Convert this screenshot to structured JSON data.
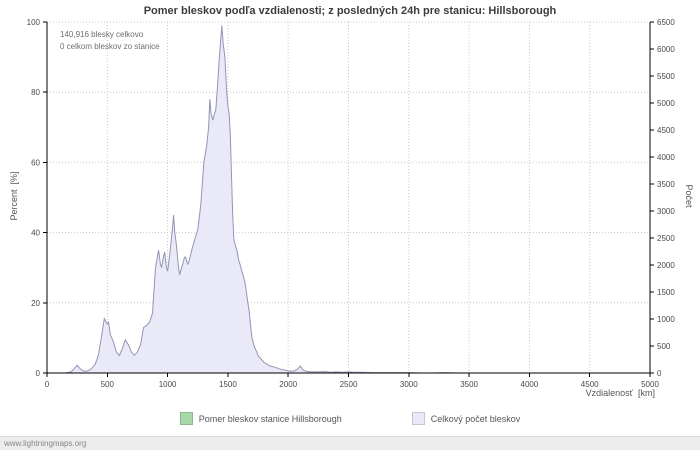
{
  "title": "Pomer bleskov podľa vzdialenosti; z posledných 24h pre stanicu: Hillsborough",
  "annotation": {
    "line1": "140,916 blesky celkovo",
    "line2": "0 celkom bleskov zo stanice"
  },
  "footer": "www.lightningmaps.org",
  "colors": {
    "area_fill": "#e9e9f8",
    "area_stroke": "#9494b4",
    "station": "#a8d8a8",
    "grid": "#c8c8c8",
    "axis": "#000000"
  },
  "legend": [
    {
      "label": "Pomer bleskov stanice Hillsborough",
      "color": "#a8d8a8"
    },
    {
      "label": "Celkový počet bleskov",
      "color": "#e9e9f8"
    }
  ],
  "chart_data": {
    "type": "area",
    "title": "Pomer bleskov podľa vzdialenosti; z posledných 24h pre stanicu: Hillsborough",
    "x_axis": {
      "label": "Vzdialenosť  [km]",
      "min": 0,
      "max": 5000,
      "tick_step": 500
    },
    "left_axis": {
      "label": "Percent  [%]",
      "min": 0,
      "max": 100,
      "ticks": [
        0,
        20,
        40,
        60,
        80,
        100
      ]
    },
    "right_axis": {
      "label": "Počet",
      "min": 0,
      "max": 6500,
      "tick_step": 500
    },
    "grid": true,
    "legend_position": "bottom",
    "series": [
      {
        "name": "Pomer bleskov stanice Hillsborough",
        "axis": "left",
        "points": [
          [
            0,
            0
          ],
          [
            5000,
            0
          ]
        ]
      },
      {
        "name": "Celkový počet bleskov",
        "axis": "right",
        "unit_note": "percent of peak; right axis count = percent * 65",
        "points": [
          [
            0,
            0
          ],
          [
            50,
            0
          ],
          [
            100,
            0
          ],
          [
            150,
            0
          ],
          [
            200,
            0.3
          ],
          [
            225,
            1.2
          ],
          [
            250,
            2.2
          ],
          [
            275,
            1.2
          ],
          [
            300,
            0.6
          ],
          [
            325,
            0.5
          ],
          [
            350,
            0.8
          ],
          [
            375,
            1.5
          ],
          [
            400,
            2.5
          ],
          [
            425,
            5
          ],
          [
            450,
            10
          ],
          [
            475,
            15.5
          ],
          [
            500,
            14
          ],
          [
            510,
            14.5
          ],
          [
            525,
            11
          ],
          [
            550,
            9
          ],
          [
            575,
            6
          ],
          [
            600,
            5
          ],
          [
            625,
            7
          ],
          [
            650,
            9.5
          ],
          [
            675,
            8
          ],
          [
            700,
            6
          ],
          [
            725,
            5
          ],
          [
            750,
            6
          ],
          [
            775,
            8
          ],
          [
            800,
            13
          ],
          [
            825,
            13.5
          ],
          [
            850,
            14.5
          ],
          [
            875,
            17
          ],
          [
            900,
            30
          ],
          [
            915,
            33
          ],
          [
            925,
            35
          ],
          [
            940,
            31
          ],
          [
            950,
            30
          ],
          [
            965,
            33
          ],
          [
            975,
            34.5
          ],
          [
            990,
            30
          ],
          [
            1000,
            29
          ],
          [
            1015,
            33
          ],
          [
            1025,
            36
          ],
          [
            1040,
            41
          ],
          [
            1050,
            45
          ],
          [
            1060,
            40
          ],
          [
            1075,
            36
          ],
          [
            1090,
            30
          ],
          [
            1100,
            28
          ],
          [
            1115,
            30
          ],
          [
            1125,
            31
          ],
          [
            1140,
            33
          ],
          [
            1150,
            33
          ],
          [
            1165,
            31
          ],
          [
            1175,
            31.5
          ],
          [
            1200,
            35
          ],
          [
            1225,
            38
          ],
          [
            1250,
            41
          ],
          [
            1265,
            45
          ],
          [
            1275,
            48
          ],
          [
            1290,
            55
          ],
          [
            1300,
            60
          ],
          [
            1315,
            63
          ],
          [
            1325,
            65
          ],
          [
            1340,
            70
          ],
          [
            1350,
            78
          ],
          [
            1360,
            74
          ],
          [
            1375,
            72
          ],
          [
            1390,
            74
          ],
          [
            1400,
            75
          ],
          [
            1415,
            82
          ],
          [
            1425,
            88
          ],
          [
            1440,
            95
          ],
          [
            1450,
            99
          ],
          [
            1460,
            94
          ],
          [
            1475,
            90
          ],
          [
            1490,
            80
          ],
          [
            1500,
            76
          ],
          [
            1510,
            74
          ],
          [
            1520,
            68
          ],
          [
            1525,
            62
          ],
          [
            1540,
            45
          ],
          [
            1550,
            38
          ],
          [
            1565,
            36
          ],
          [
            1575,
            35
          ],
          [
            1590,
            32
          ],
          [
            1600,
            31
          ],
          [
            1615,
            29
          ],
          [
            1625,
            28
          ],
          [
            1640,
            26
          ],
          [
            1650,
            24
          ],
          [
            1665,
            20
          ],
          [
            1675,
            18
          ],
          [
            1690,
            13
          ],
          [
            1700,
            10
          ],
          [
            1715,
            8
          ],
          [
            1725,
            7
          ],
          [
            1740,
            6
          ],
          [
            1750,
            5
          ],
          [
            1775,
            4
          ],
          [
            1800,
            3
          ],
          [
            1825,
            2.5
          ],
          [
            1850,
            2
          ],
          [
            1875,
            1.8
          ],
          [
            1900,
            1.5
          ],
          [
            1925,
            1.2
          ],
          [
            1950,
            1
          ],
          [
            1975,
            0.8
          ],
          [
            2000,
            0.6
          ],
          [
            2025,
            0.5
          ],
          [
            2050,
            0.6
          ],
          [
            2075,
            1
          ],
          [
            2100,
            2
          ],
          [
            2125,
            0.8
          ],
          [
            2150,
            0.5
          ],
          [
            2175,
            0.4
          ],
          [
            2200,
            0.3
          ],
          [
            2250,
            0.3
          ],
          [
            2300,
            0.4
          ],
          [
            2350,
            0.2
          ],
          [
            2400,
            0.3
          ],
          [
            2450,
            0.2
          ],
          [
            2500,
            0.3
          ],
          [
            2550,
            0.2
          ],
          [
            2600,
            0.2
          ],
          [
            2700,
            0.1
          ],
          [
            2800,
            0.1
          ],
          [
            2900,
            0.1
          ],
          [
            3000,
            0.1
          ],
          [
            3100,
            0
          ],
          [
            3200,
            0
          ],
          [
            3300,
            0.1
          ],
          [
            3400,
            0
          ],
          [
            3500,
            0
          ],
          [
            3600,
            0
          ],
          [
            3700,
            0
          ],
          [
            3800,
            0
          ],
          [
            3900,
            0
          ],
          [
            4000,
            0
          ],
          [
            4100,
            0
          ],
          [
            4200,
            0
          ],
          [
            4300,
            0
          ],
          [
            4400,
            0
          ],
          [
            4500,
            0
          ],
          [
            4600,
            0
          ],
          [
            4700,
            0
          ],
          [
            4800,
            0
          ],
          [
            4900,
            0
          ],
          [
            5000,
            0
          ]
        ]
      }
    ]
  }
}
